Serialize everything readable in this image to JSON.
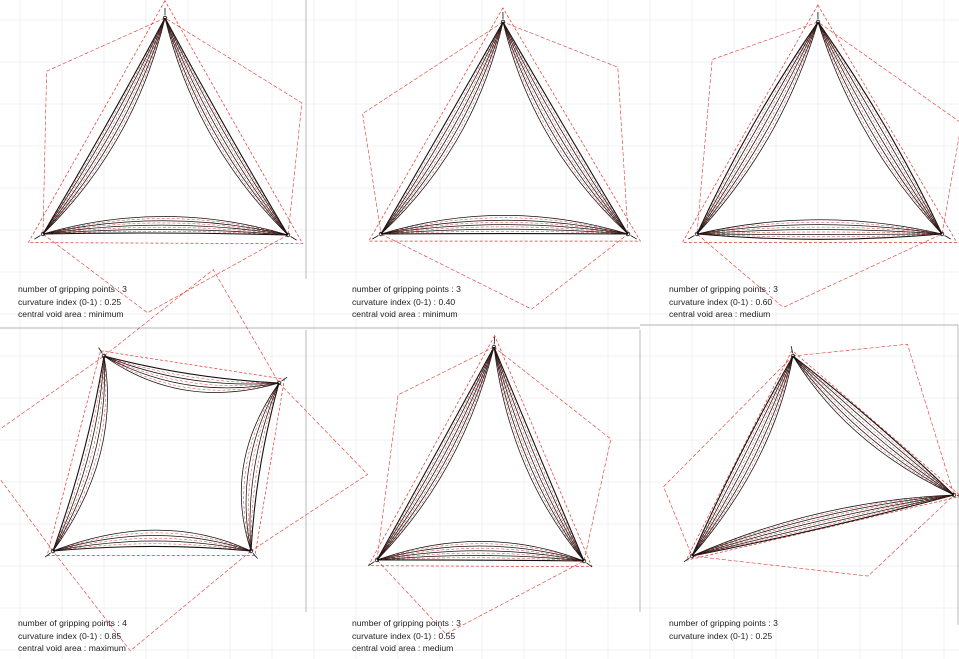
{
  "colors": {
    "curve": "#111111",
    "construction": "#e0352b",
    "grid": "#e6e6e6",
    "divider": "#9a9a9a",
    "caption_text": "#222222"
  },
  "panels": [
    {
      "type": "triangular-membrane",
      "gripping_points": 3,
      "curvature_index": 0.25,
      "central_void": "minimum",
      "caption": {
        "line1": "number of gripping points : 3",
        "line2": "curvature index (0-1) : 0.25",
        "line3": "central void area : minimum"
      }
    },
    {
      "type": "triangular-membrane",
      "gripping_points": 3,
      "curvature_index": 0.4,
      "central_void": "minimum",
      "caption": {
        "line1": "number of gripping points : 3",
        "line2": "curvature index (0-1) : 0.40",
        "line3": "central void area : minimum"
      }
    },
    {
      "type": "triangular-membrane",
      "gripping_points": 3,
      "curvature_index": 0.6,
      "central_void": "medium",
      "caption": {
        "line1": "number of gripping points : 3",
        "line2": "curvature index (0-1) : 0.60",
        "line3": "central void area : medium"
      }
    },
    {
      "type": "square-membrane",
      "gripping_points": 4,
      "curvature_index": 0.85,
      "central_void": "maximum",
      "caption": {
        "line1": "number of gripping points : 4",
        "line2": "curvature index (0-1) : 0.85",
        "line3": "central void area : maximum"
      }
    },
    {
      "type": "triangular-membrane",
      "gripping_points": 3,
      "curvature_index": 0.55,
      "central_void": "medium",
      "caption": {
        "line1": "number of gripping points : 3",
        "line2": "curvature index (0-1) : 0.55",
        "line3": "central void area : medium"
      }
    },
    {
      "type": "triangular-membrane",
      "gripping_points": 3,
      "curvature_index": 0.25,
      "central_void": "",
      "caption": {
        "line1": "number of gripping points : 3",
        "line2": "curvature index (0-1) : 0.25"
      }
    }
  ]
}
